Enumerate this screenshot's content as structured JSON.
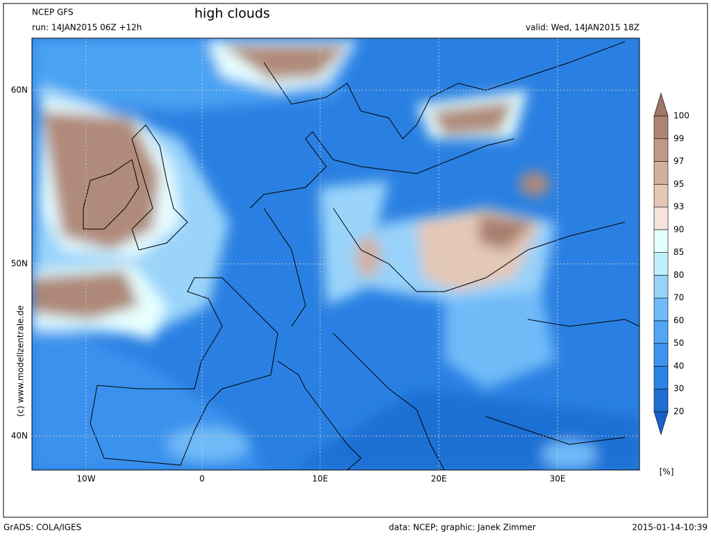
{
  "header": {
    "model": "NCEP GFS",
    "run": "run: 14JAN2015 06Z +12h",
    "title": "high clouds",
    "valid": "valid: Wed, 14JAN2015 18Z"
  },
  "axes": {
    "lat_labels": [
      "60N",
      "50N",
      "40N"
    ],
    "lon_labels": [
      "10W",
      "0",
      "10E",
      "20E",
      "30E"
    ]
  },
  "colorbar": {
    "levels": [
      20,
      30,
      40,
      50,
      60,
      70,
      80,
      85,
      90,
      93,
      95,
      97,
      99,
      100
    ],
    "colors": [
      "#1a5fcc",
      "#1e6ed2",
      "#2a82e4",
      "#3c94ee",
      "#52a6f4",
      "#70baf8",
      "#98d2fa",
      "#bdf0fb",
      "#e6ffff",
      "#f4e4da",
      "#e4c8b6",
      "#d2b0a0",
      "#c09886",
      "#ae8474",
      "#a07866"
    ],
    "unit": "[%]"
  },
  "credit": "(c) www.modellzentrale.de",
  "footer": {
    "left": "GrADS: COLA/IGES",
    "center": "data: NCEP; graphic: Janek Zimmer",
    "right": "2015-01-14-10:39"
  }
}
